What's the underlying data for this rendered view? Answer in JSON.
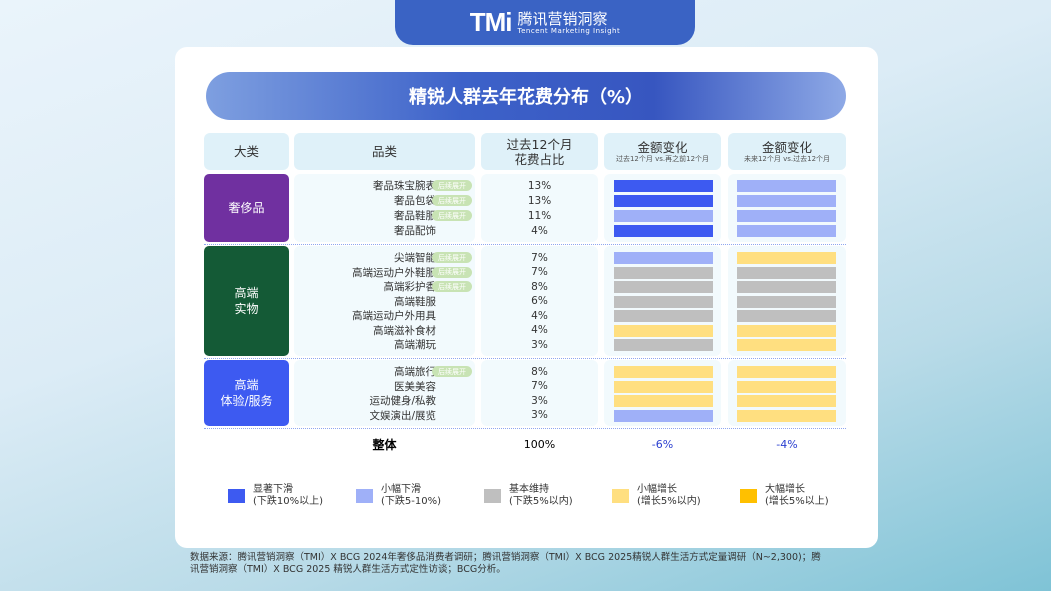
{
  "logo": {
    "mark": "TMi",
    "cn": "腾讯营销洞察",
    "en": "Tencent Marketing Insight"
  },
  "title": "精锐人群去年花费分布（%）",
  "headers": {
    "category": "大类",
    "item": "品类",
    "share": "过去12个月\n花费占比",
    "change1": "金额变化",
    "change1_sub": "过去12个月 vs.再之前12个月",
    "change2": "金额变化",
    "change2_sub": "未来12个月 vs.过去12个月"
  },
  "badge": "后续展开",
  "colors": {
    "sd": "#3d5af1",
    "md": "#9fb0f8",
    "st": "#bfbfbf",
    "mi": "#ffdf80",
    "si": "#ffc000"
  },
  "groups": [
    {
      "name": "奢侈品",
      "color": "#7030a0",
      "rows": [
        {
          "item": "奢品珠宝腕表",
          "badge": true,
          "share": "13%",
          "change1": "sd",
          "change2": "md"
        },
        {
          "item": "奢品包袋",
          "badge": true,
          "share": "13%",
          "change1": "sd",
          "change2": "md"
        },
        {
          "item": "奢品鞋服",
          "badge": true,
          "share": "11%",
          "change1": "md",
          "change2": "md"
        },
        {
          "item": "奢品配饰",
          "badge": false,
          "share": "4%",
          "change1": "sd",
          "change2": "md"
        }
      ]
    },
    {
      "name": "高端\n实物",
      "color": "#145a36",
      "rows": [
        {
          "item": "尖端智能",
          "badge": true,
          "share": "7%",
          "change1": "md",
          "change2": "mi"
        },
        {
          "item": "高端运动户外鞋服",
          "badge": true,
          "share": "7%",
          "change1": "st",
          "change2": "st"
        },
        {
          "item": "高端彩护香",
          "badge": true,
          "share": "8%",
          "change1": "st",
          "change2": "st"
        },
        {
          "item": "高端鞋服",
          "badge": false,
          "share": "6%",
          "change1": "st",
          "change2": "st"
        },
        {
          "item": "高端运动户外用具",
          "badge": false,
          "share": "4%",
          "change1": "st",
          "change2": "st"
        },
        {
          "item": "高端滋补食材",
          "badge": false,
          "share": "4%",
          "change1": "mi",
          "change2": "mi"
        },
        {
          "item": "高端潮玩",
          "badge": false,
          "share": "3%",
          "change1": "st",
          "change2": "mi"
        }
      ]
    },
    {
      "name": "高端\n体验/服务",
      "color": "#3d5af1",
      "rows": [
        {
          "item": "高端旅行",
          "badge": true,
          "share": "8%",
          "change1": "mi",
          "change2": "mi"
        },
        {
          "item": "医美美容",
          "badge": false,
          "share": "7%",
          "change1": "mi",
          "change2": "mi"
        },
        {
          "item": "运动健身/私教",
          "badge": false,
          "share": "3%",
          "change1": "mi",
          "change2": "mi"
        },
        {
          "item": "文娱演出/展览",
          "badge": false,
          "share": "3%",
          "change1": "md",
          "change2": "mi"
        }
      ]
    }
  ],
  "total": {
    "label": "整体",
    "share": "100%",
    "change1": "-6%",
    "change2": "-4%"
  },
  "legend": [
    {
      "key": "sd",
      "label": "显著下滑",
      "sub": "(下跌10%以上)"
    },
    {
      "key": "md",
      "label": "小幅下滑",
      "sub": "(下跌5-10%)"
    },
    {
      "key": "st",
      "label": "基本维持",
      "sub": "(下跌5%以内)"
    },
    {
      "key": "mi",
      "label": "小幅增长",
      "sub": "(增长5%以内)"
    },
    {
      "key": "si",
      "label": "大幅增长",
      "sub": "(增长5%以上)"
    }
  ],
  "source": "数据来源：腾讯营销洞察（TMI）X BCG 2024年奢侈品消费者调研；腾讯营销洞察（TMI）X BCG 2025精锐人群生活方式定量调研（N~2,300)；腾讯营销洞察（TMI）X BCG 2025 精锐人群生活方式定性访谈；BCG分析。"
}
